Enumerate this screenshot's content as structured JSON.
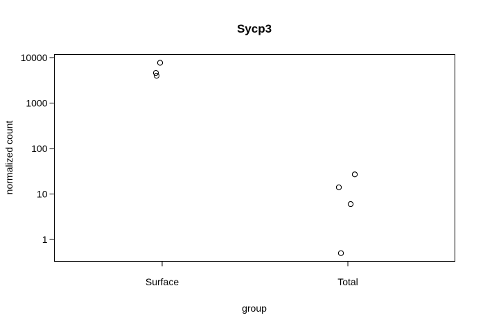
{
  "chart_data": {
    "type": "scatter",
    "title": "Sycp3",
    "xlabel": "group",
    "ylabel": "normalized count",
    "y_scale": "log10",
    "ylim": [
      0.3,
      14000
    ],
    "categories": [
      "Surface",
      "Total"
    ],
    "y_ticks": [
      1,
      10,
      100,
      1000,
      10000
    ],
    "y_tick_labels": [
      "1",
      "10",
      "100",
      "1000",
      "10000"
    ],
    "points": [
      {
        "group": "Surface",
        "y": 7700
      },
      {
        "group": "Surface",
        "y": 4600
      },
      {
        "group": "Surface",
        "y": 4000
      },
      {
        "group": "Total",
        "y": 27
      },
      {
        "group": "Total",
        "y": 14
      },
      {
        "group": "Total",
        "y": 6
      },
      {
        "group": "Total",
        "y": 0.5
      }
    ],
    "grid": false,
    "legend": "none"
  }
}
